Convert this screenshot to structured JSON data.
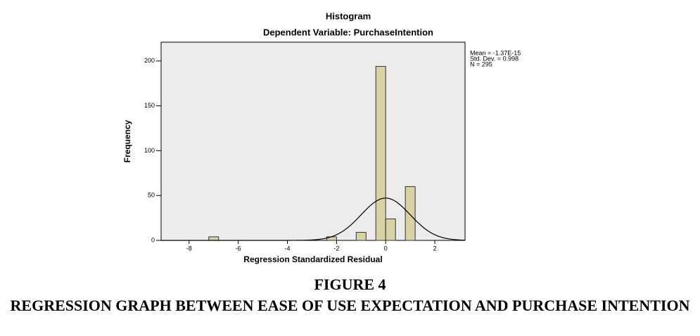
{
  "chart_data": {
    "type": "histogram",
    "title": "Histogram",
    "subtitle": "Dependent Variable: PurchaseIntention",
    "x_label": "Regression Standardized Residual",
    "y_label": "Frequency",
    "bins": [
      -7.2,
      -6.8,
      -6.4,
      -6,
      -5.6,
      -5.2,
      -4.8,
      -4.4,
      -4,
      -3.6,
      -3.2,
      -2.8,
      -2.4,
      -2,
      -1.6,
      -1.2,
      -0.8,
      -0.4,
      0,
      0.4,
      0.8,
      1.2
    ],
    "values": [
      4,
      0,
      0,
      0,
      0,
      0,
      0,
      0,
      0,
      0,
      0,
      0,
      4,
      0,
      0,
      9,
      0,
      194,
      24,
      0,
      60
    ],
    "color": "#d8d2a4",
    "xlim": [
      -9.14,
      3.23
    ],
    "xticks": [
      -8,
      -6,
      -4,
      -2,
      0,
      2
    ],
    "ylim": [
      0,
      221
    ],
    "yticks": [
      0,
      50,
      100,
      150,
      200
    ],
    "stats": [
      {
        "value": -1.37e-15,
        "label": "Mean = -1.37E-15"
      },
      {
        "value": 0.998,
        "label": "Std. Dev. = 0.998"
      },
      {
        "value": 295,
        "label": "N = 295"
      }
    ],
    "curve": "normal"
  },
  "caption": {
    "figure": "FIGURE 4",
    "text": "REGRESSION GRAPH BETWEEN EASE OF USE EXPECTATION AND PURCHASE INTENTION"
  }
}
